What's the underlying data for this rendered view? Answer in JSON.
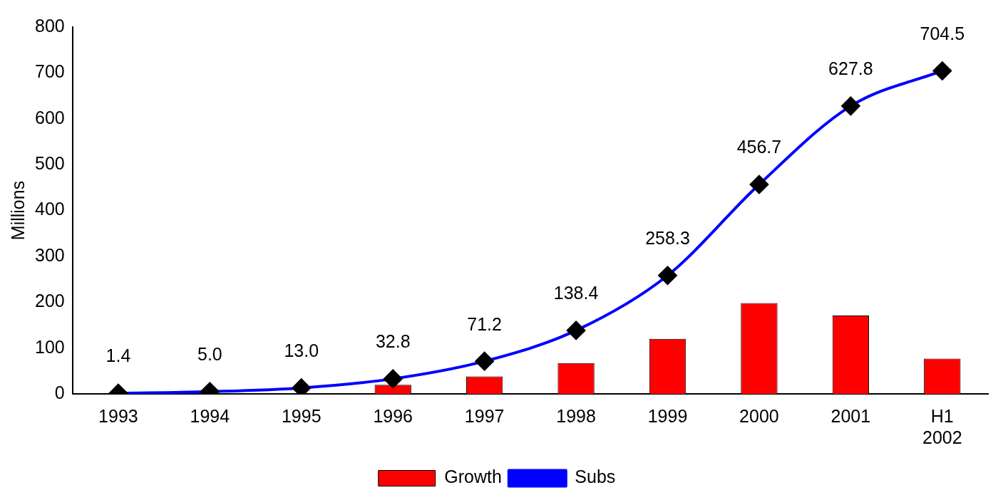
{
  "chart_data": {
    "type": "bar",
    "ylabel": "Millions",
    "categories": [
      "1993",
      "1994",
      "1995",
      "1996",
      "1997",
      "1998",
      "1999",
      "2000",
      "2001",
      "H1 2002"
    ],
    "series": [
      {
        "name": "Growth",
        "color": "#ff0000",
        "values": [
          null,
          null,
          null,
          20,
          38,
          67,
          120,
          198,
          171,
          77
        ]
      },
      {
        "name": "Subs",
        "type": "line",
        "color": "#0000ff",
        "marker": "diamond",
        "values": [
          1.4,
          5.0,
          13.0,
          32.8,
          71.2,
          138.4,
          258.3,
          456.7,
          627.8,
          704.5
        ],
        "value_labels": [
          "1.4",
          "5.0",
          "13.0",
          "32.8",
          "71.2",
          "138.4",
          "258.3",
          "456.7",
          "627.8",
          "704.5"
        ]
      }
    ],
    "ylim": [
      0,
      800
    ],
    "yticks": [
      0,
      100,
      200,
      300,
      400,
      500,
      600,
      700,
      800
    ],
    "grid": false,
    "legend": "bottom"
  }
}
